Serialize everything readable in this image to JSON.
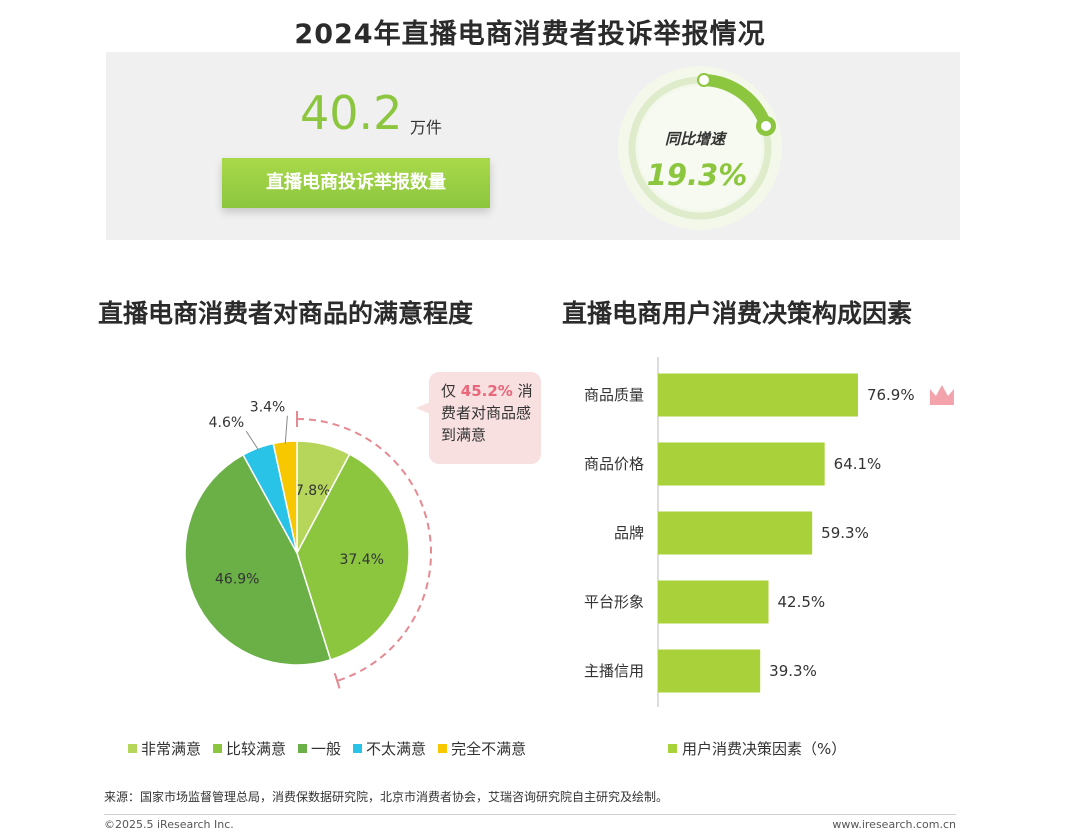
{
  "title": "2024年直播电商消费者投诉举报情况",
  "top_panel": {
    "complaint_value": "40.2",
    "complaint_unit": "万件",
    "complaint_label": "直播电商投诉举报数量",
    "gauge_label": "同比增速",
    "gauge_value": "19.3%"
  },
  "callout": {
    "prefix": "仅",
    "highlight": "45.2%",
    "suffix": "消费者对商品感到满意"
  },
  "chart_data": [
    {
      "type": "pie",
      "title": "直播电商消费者对商品的满意程度",
      "slices": [
        {
          "label": "非常满意",
          "value": 7.8,
          "display": "7.8%",
          "color": "#b5d65b"
        },
        {
          "label": "比较满意",
          "value": 37.4,
          "display": "37.4%",
          "color": "#8cc63f"
        },
        {
          "label": "一般",
          "value": 46.9,
          "display": "46.9%",
          "color": "#6ab046"
        },
        {
          "label": "不太满意",
          "value": 4.6,
          "display": "4.6%",
          "color": "#29c3e8"
        },
        {
          "label": "完全不满意",
          "value": 3.4,
          "display": "3.4%",
          "color": "#f7c800"
        }
      ]
    },
    {
      "type": "bar",
      "orientation": "horizontal",
      "title": "直播电商用户消费决策构成因素",
      "categories": [
        "商品质量",
        "商品价格",
        "品牌",
        "平台形象",
        "主播信用"
      ],
      "values": [
        76.9,
        64.1,
        59.3,
        42.5,
        39.3
      ],
      "value_labels": [
        "76.9%",
        "64.1%",
        "59.3%",
        "42.5%",
        "39.3%"
      ],
      "legend": "用户消费决策因素（%）",
      "color": "#a8d13a"
    }
  ],
  "source": "来源：国家市场监督管理总局，消费保数据研究院，北京市消费者协会，艾瑞咨询研究院自主研究及绘制。",
  "copyright": "©2025.5 iResearch Inc.",
  "website": "www.iresearch.com.cn"
}
